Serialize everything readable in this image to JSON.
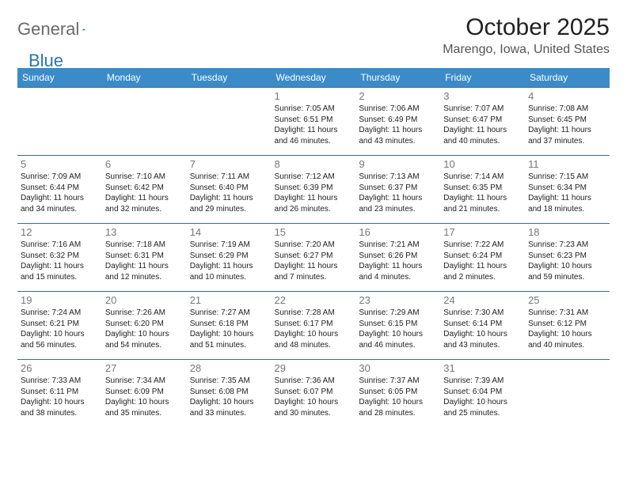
{
  "brand": {
    "part1": "General",
    "part2": "Blue"
  },
  "title": "October 2025",
  "location": "Marengo, Iowa, United States",
  "colors": {
    "headerBg": "#3b8bc9",
    "headerText": "#ffffff",
    "rowBorder": "#2f6ea8",
    "dayNum": "#777777",
    "bodyText": "#222222",
    "brandGray": "#6a6a6a",
    "brandBlue": "#2a73b8"
  },
  "dayNames": [
    "Sunday",
    "Monday",
    "Tuesday",
    "Wednesday",
    "Thursday",
    "Friday",
    "Saturday"
  ],
  "weeks": [
    [
      null,
      null,
      null,
      {
        "n": "1",
        "sr": "7:05 AM",
        "ss": "6:51 PM",
        "dl": "11 hours and 46 minutes."
      },
      {
        "n": "2",
        "sr": "7:06 AM",
        "ss": "6:49 PM",
        "dl": "11 hours and 43 minutes."
      },
      {
        "n": "3",
        "sr": "7:07 AM",
        "ss": "6:47 PM",
        "dl": "11 hours and 40 minutes."
      },
      {
        "n": "4",
        "sr": "7:08 AM",
        "ss": "6:45 PM",
        "dl": "11 hours and 37 minutes."
      }
    ],
    [
      {
        "n": "5",
        "sr": "7:09 AM",
        "ss": "6:44 PM",
        "dl": "11 hours and 34 minutes."
      },
      {
        "n": "6",
        "sr": "7:10 AM",
        "ss": "6:42 PM",
        "dl": "11 hours and 32 minutes."
      },
      {
        "n": "7",
        "sr": "7:11 AM",
        "ss": "6:40 PM",
        "dl": "11 hours and 29 minutes."
      },
      {
        "n": "8",
        "sr": "7:12 AM",
        "ss": "6:39 PM",
        "dl": "11 hours and 26 minutes."
      },
      {
        "n": "9",
        "sr": "7:13 AM",
        "ss": "6:37 PM",
        "dl": "11 hours and 23 minutes."
      },
      {
        "n": "10",
        "sr": "7:14 AM",
        "ss": "6:35 PM",
        "dl": "11 hours and 21 minutes."
      },
      {
        "n": "11",
        "sr": "7:15 AM",
        "ss": "6:34 PM",
        "dl": "11 hours and 18 minutes."
      }
    ],
    [
      {
        "n": "12",
        "sr": "7:16 AM",
        "ss": "6:32 PM",
        "dl": "11 hours and 15 minutes."
      },
      {
        "n": "13",
        "sr": "7:18 AM",
        "ss": "6:31 PM",
        "dl": "11 hours and 12 minutes."
      },
      {
        "n": "14",
        "sr": "7:19 AM",
        "ss": "6:29 PM",
        "dl": "11 hours and 10 minutes."
      },
      {
        "n": "15",
        "sr": "7:20 AM",
        "ss": "6:27 PM",
        "dl": "11 hours and 7 minutes."
      },
      {
        "n": "16",
        "sr": "7:21 AM",
        "ss": "6:26 PM",
        "dl": "11 hours and 4 minutes."
      },
      {
        "n": "17",
        "sr": "7:22 AM",
        "ss": "6:24 PM",
        "dl": "11 hours and 2 minutes."
      },
      {
        "n": "18",
        "sr": "7:23 AM",
        "ss": "6:23 PM",
        "dl": "10 hours and 59 minutes."
      }
    ],
    [
      {
        "n": "19",
        "sr": "7:24 AM",
        "ss": "6:21 PM",
        "dl": "10 hours and 56 minutes."
      },
      {
        "n": "20",
        "sr": "7:26 AM",
        "ss": "6:20 PM",
        "dl": "10 hours and 54 minutes."
      },
      {
        "n": "21",
        "sr": "7:27 AM",
        "ss": "6:18 PM",
        "dl": "10 hours and 51 minutes."
      },
      {
        "n": "22",
        "sr": "7:28 AM",
        "ss": "6:17 PM",
        "dl": "10 hours and 48 minutes."
      },
      {
        "n": "23",
        "sr": "7:29 AM",
        "ss": "6:15 PM",
        "dl": "10 hours and 46 minutes."
      },
      {
        "n": "24",
        "sr": "7:30 AM",
        "ss": "6:14 PM",
        "dl": "10 hours and 43 minutes."
      },
      {
        "n": "25",
        "sr": "7:31 AM",
        "ss": "6:12 PM",
        "dl": "10 hours and 40 minutes."
      }
    ],
    [
      {
        "n": "26",
        "sr": "7:33 AM",
        "ss": "6:11 PM",
        "dl": "10 hours and 38 minutes."
      },
      {
        "n": "27",
        "sr": "7:34 AM",
        "ss": "6:09 PM",
        "dl": "10 hours and 35 minutes."
      },
      {
        "n": "28",
        "sr": "7:35 AM",
        "ss": "6:08 PM",
        "dl": "10 hours and 33 minutes."
      },
      {
        "n": "29",
        "sr": "7:36 AM",
        "ss": "6:07 PM",
        "dl": "10 hours and 30 minutes."
      },
      {
        "n": "30",
        "sr": "7:37 AM",
        "ss": "6:05 PM",
        "dl": "10 hours and 28 minutes."
      },
      {
        "n": "31",
        "sr": "7:39 AM",
        "ss": "6:04 PM",
        "dl": "10 hours and 25 minutes."
      },
      null
    ]
  ],
  "labels": {
    "sunrise": "Sunrise: ",
    "sunset": "Sunset: ",
    "daylight": "Daylight: "
  }
}
